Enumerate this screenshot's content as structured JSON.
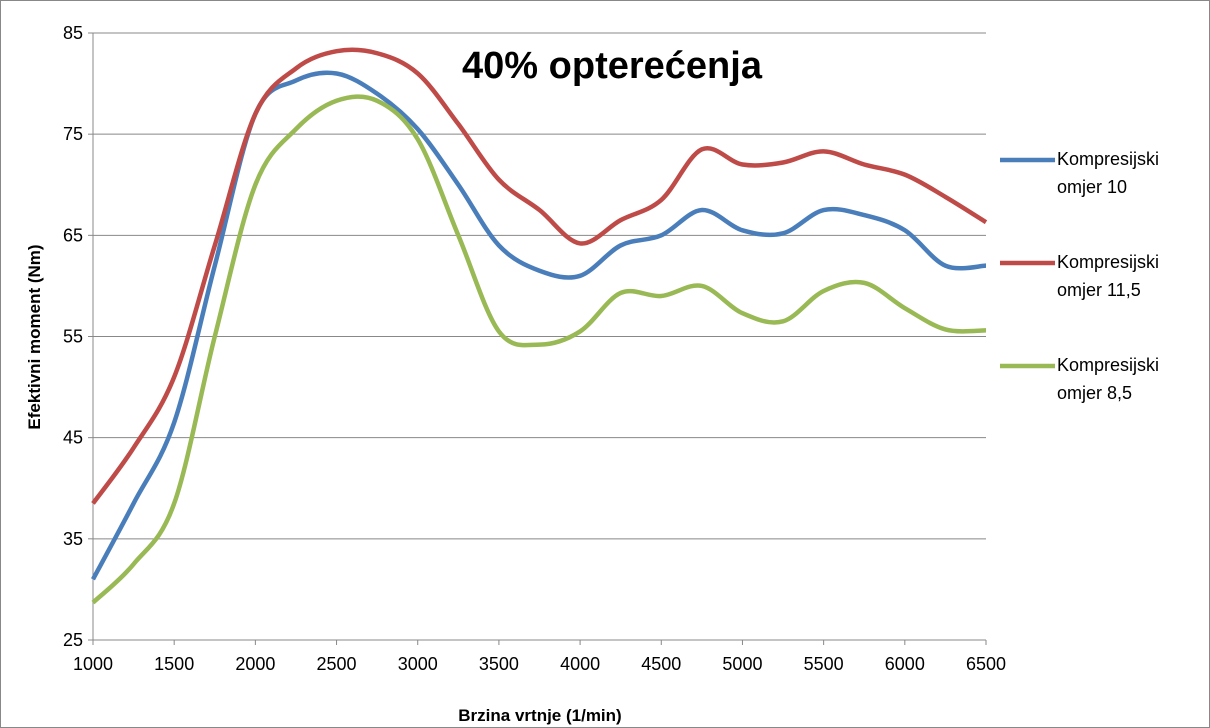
{
  "chart_data": {
    "type": "line",
    "title": "40% opterećenja",
    "x_label": "Brzina vrtnje (1/min)",
    "y_label": "Efektivni moment (Nm)",
    "x": [
      1000,
      1250,
      1500,
      1750,
      2000,
      2250,
      2500,
      2750,
      3000,
      3250,
      3500,
      3750,
      4000,
      4250,
      4500,
      4750,
      5000,
      5250,
      5500,
      5750,
      6000,
      6250,
      6500
    ],
    "series": [
      {
        "name": "Kompresijski omjer 10",
        "color": "#4a7ebb",
        "values": [
          31,
          38.5,
          46.5,
          62,
          77,
          80.3,
          81,
          79,
          75.5,
          70,
          64,
          61.5,
          61,
          64,
          65,
          67.5,
          65.5,
          65.2,
          67.5,
          67,
          65.5,
          62,
          62
        ]
      },
      {
        "name": "Kompresijski omjer 11,5",
        "color": "#be4b48",
        "values": [
          38.5,
          44,
          51,
          64,
          77,
          81.5,
          83.2,
          83,
          81,
          76,
          70.5,
          67.5,
          64.2,
          66.5,
          68.5,
          73.5,
          72,
          72.2,
          73.3,
          72,
          71,
          68.8,
          66.3
        ]
      },
      {
        "name": "Kompresijski omjer 8,5",
        "color": "#98b954",
        "values": [
          28.7,
          32.5,
          38.5,
          55,
          70,
          75.5,
          78.3,
          78.3,
          74.5,
          65,
          55.5,
          54.2,
          55.5,
          59.3,
          59,
          60,
          57.3,
          56.5,
          59.5,
          60.3,
          57.8,
          55.7,
          55.6
        ]
      }
    ],
    "xlim": [
      1000,
      6500
    ],
    "xticks": [
      1000,
      1500,
      2000,
      2500,
      3000,
      3500,
      4000,
      4500,
      5000,
      5500,
      6000,
      6500
    ],
    "ylim": [
      25,
      85
    ],
    "yticks": [
      25,
      35,
      45,
      55,
      65,
      75,
      85
    ],
    "grid": true,
    "legend": "right"
  }
}
